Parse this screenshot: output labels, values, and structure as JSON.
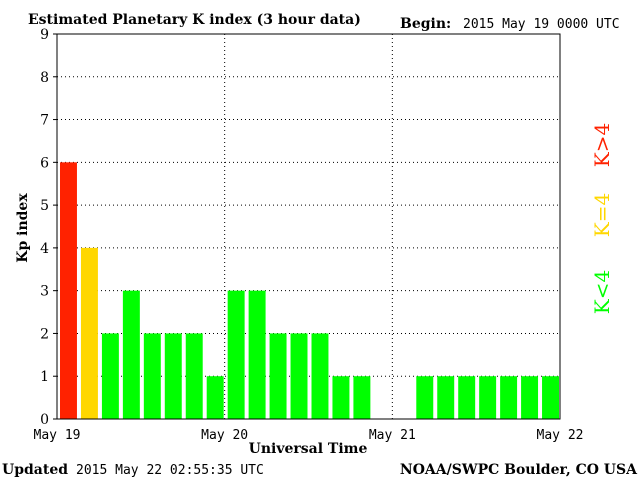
{
  "header": {
    "title": "Estimated Planetary K index (3 hour data)",
    "begin_label": "Begin:",
    "begin_value": "2015 May 19 0000 UTC"
  },
  "footer": {
    "updated_label": "Updated",
    "updated_value": "2015 May 22 02:55:35 UTC",
    "source": "NOAA/SWPC Boulder, CO USA"
  },
  "colors": {
    "storm": "#ff2200",
    "active": "#ffd700",
    "quiet": "#00ff00",
    "grid": "#000000",
    "axis": "#000000"
  },
  "legend": {
    "storm": "K>4",
    "active": "K=4",
    "quiet": "K<4"
  },
  "chart_data": {
    "type": "bar",
    "title": "Estimated Planetary K index (3 hour data)",
    "xlabel": "Universal Time",
    "ylabel": "Kp index",
    "ylim": [
      0,
      9
    ],
    "yticks": [
      0,
      1,
      2,
      3,
      4,
      5,
      6,
      7,
      8,
      9
    ],
    "x_tick_labels": [
      "May 19",
      "May 20",
      "May 21",
      "May 22"
    ],
    "bins_per_day": 8,
    "days": 3,
    "grid": true,
    "values": [
      6,
      4,
      2,
      3,
      2,
      2,
      2,
      1,
      3,
      3,
      2,
      2,
      2,
      1,
      1,
      0,
      0,
      1,
      1,
      1,
      1,
      1,
      1,
      1
    ],
    "legend_placement": "right"
  }
}
